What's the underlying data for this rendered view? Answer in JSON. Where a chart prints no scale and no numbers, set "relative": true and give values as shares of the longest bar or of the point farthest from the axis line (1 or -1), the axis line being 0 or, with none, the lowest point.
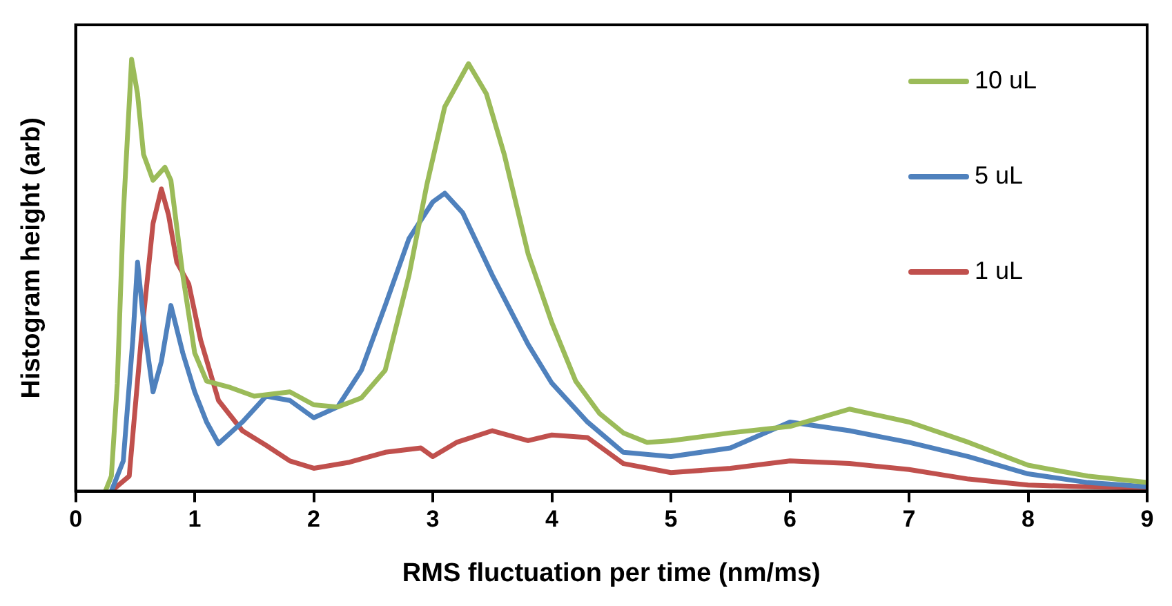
{
  "chart_data": {
    "type": "line",
    "xlabel": "RMS fluctuation per time (nm/ms)",
    "ylabel": "Histogram height (arb)",
    "relative": true,
    "xlim": [
      0,
      9
    ],
    "xticks": [
      0,
      1,
      2,
      3,
      4,
      5,
      6,
      7,
      8,
      9
    ],
    "grid": false,
    "legend": "top right",
    "marker": "none",
    "line_style": "solid",
    "series": [
      {
        "name": "10 uL",
        "color": "#9bbb59",
        "x": [
          0.25,
          0.3,
          0.35,
          0.4,
          0.47,
          0.52,
          0.57,
          0.65,
          0.75,
          0.8,
          0.9,
          1.0,
          1.1,
          1.3,
          1.5,
          1.8,
          2.0,
          2.2,
          2.4,
          2.6,
          2.8,
          2.95,
          3.1,
          3.3,
          3.45,
          3.6,
          3.8,
          4.0,
          4.2,
          4.4,
          4.6,
          4.8,
          5.0,
          5.5,
          6.0,
          6.5,
          7.0,
          7.5,
          8.0,
          8.5,
          9.0
        ],
        "values": [
          0,
          0.035,
          0.25,
          0.64,
          1,
          0.92,
          0.78,
          0.72,
          0.75,
          0.72,
          0.5,
          0.32,
          0.255,
          0.24,
          0.22,
          0.23,
          0.2,
          0.195,
          0.216,
          0.28,
          0.5,
          0.71,
          0.89,
          0.99,
          0.92,
          0.78,
          0.55,
          0.39,
          0.255,
          0.18,
          0.135,
          0.113,
          0.117,
          0.135,
          0.15,
          0.19,
          0.16,
          0.113,
          0.06,
          0.035,
          0.02
        ]
      },
      {
        "name": "5 uL",
        "color": "#4f81bd",
        "x": [
          0.3,
          0.4,
          0.48,
          0.52,
          0.58,
          0.65,
          0.72,
          0.8,
          0.9,
          1.0,
          1.1,
          1.2,
          1.4,
          1.6,
          1.8,
          2.0,
          2.2,
          2.4,
          2.6,
          2.8,
          3.0,
          3.1,
          3.25,
          3.5,
          3.8,
          4.0,
          4.3,
          4.6,
          5.0,
          5.5,
          6.0,
          6.5,
          7.0,
          7.5,
          8.0,
          8.5,
          9.0
        ],
        "values": [
          0,
          0.07,
          0.35,
          0.53,
          0.37,
          0.23,
          0.3,
          0.43,
          0.32,
          0.23,
          0.16,
          0.11,
          0.16,
          0.22,
          0.21,
          0.17,
          0.195,
          0.28,
          0.43,
          0.585,
          0.67,
          0.69,
          0.645,
          0.5,
          0.34,
          0.25,
          0.16,
          0.09,
          0.08,
          0.1,
          0.16,
          0.14,
          0.113,
          0.08,
          0.04,
          0.02,
          0.01
        ]
      },
      {
        "name": "1 uL",
        "color": "#c0504d",
        "x": [
          0.3,
          0.45,
          0.55,
          0.65,
          0.72,
          0.78,
          0.85,
          0.95,
          1.05,
          1.2,
          1.4,
          1.6,
          1.8,
          2.0,
          2.3,
          2.6,
          2.9,
          3.0,
          3.2,
          3.5,
          3.8,
          4.0,
          4.3,
          4.6,
          5.0,
          5.5,
          6.0,
          6.5,
          7.0,
          7.5,
          8.0,
          8.5,
          9.0
        ],
        "values": [
          0,
          0.035,
          0.35,
          0.62,
          0.7,
          0.64,
          0.53,
          0.48,
          0.35,
          0.21,
          0.14,
          0.106,
          0.07,
          0.053,
          0.067,
          0.09,
          0.1,
          0.08,
          0.113,
          0.14,
          0.117,
          0.13,
          0.124,
          0.064,
          0.043,
          0.053,
          0.07,
          0.064,
          0.05,
          0.028,
          0.014,
          0.01,
          0.007
        ]
      }
    ]
  }
}
